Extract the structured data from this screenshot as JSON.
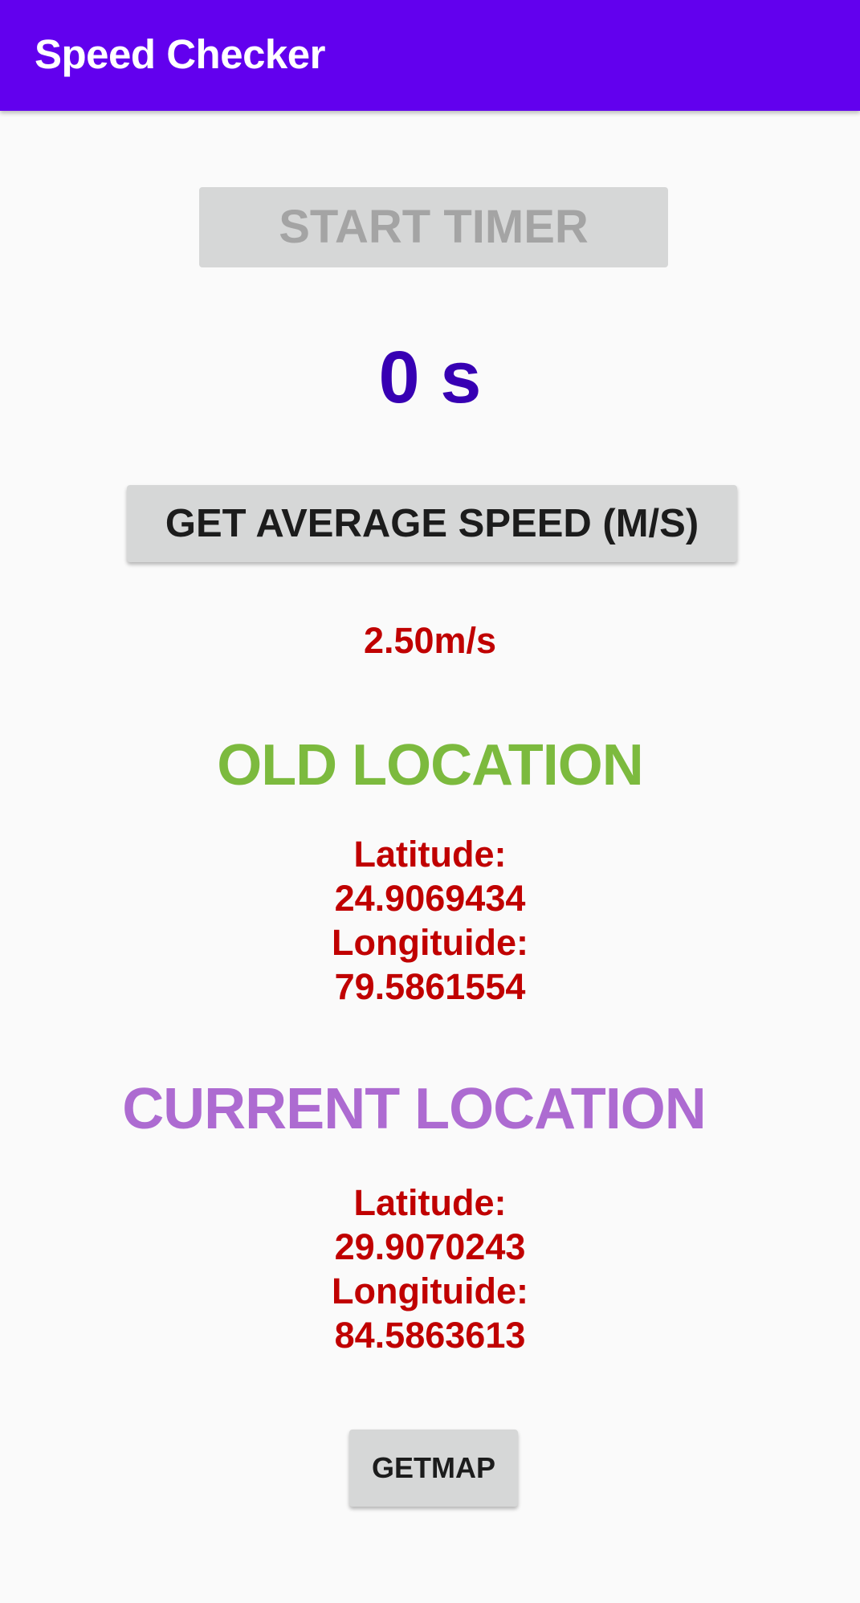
{
  "app_bar": {
    "title": "Speed Checker",
    "color": "#6200ee"
  },
  "timer": {
    "start_button_label": "START TIMER",
    "start_button_enabled": false,
    "elapsed_text": "0 s"
  },
  "speed": {
    "button_label": "GET AVERAGE SPEED (M/S)",
    "value_text": "2.50m/s"
  },
  "old_location": {
    "heading": "OLD LOCATION",
    "heading_color": "#7cba3e",
    "latitude_label": "Latitude:",
    "latitude_value": "24.9069434",
    "longitude_label": "Longituide:",
    "longitude_value": "79.5861554"
  },
  "current_location": {
    "heading": "CURRENT LOCATION",
    "heading_color": "#ad6bd1",
    "latitude_label": "Latitude:",
    "latitude_value": "29.9070243",
    "longitude_label": "Longituide:",
    "longitude_value": "84.5863613"
  },
  "map": {
    "button_label": "GETMAP"
  },
  "colors": {
    "value_text": "#c00000",
    "timer_text": "#3700b3",
    "button_bg": "#d6d7d7",
    "background": "#fafafa"
  }
}
